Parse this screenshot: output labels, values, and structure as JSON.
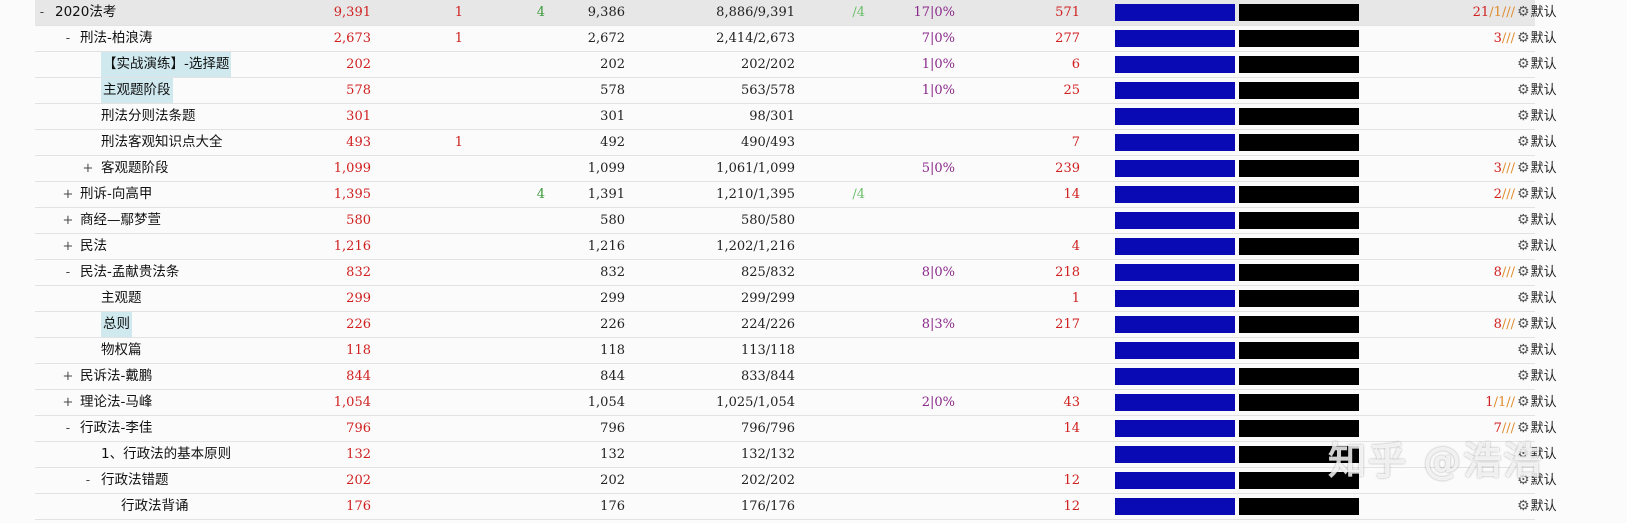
{
  "rows": [
    {
      "toggle": "-",
      "name": "2020法考",
      "c1": "9,391",
      "c2": "1",
      "c3": "4",
      "c4": "9,386",
      "c5a": "8,886",
      "c5b": "9,391",
      "c6": "/4",
      "c7": "17|0%",
      "c8": "571",
      "c9a": "21",
      "c9b": "/1/",
      "c9c": "//",
      "def": "默认"
    },
    {
      "toggle": "-",
      "name": "刑法-柏浪涛",
      "c1": "2,673",
      "c2": "1",
      "c3": "",
      "c4": "2,672",
      "c5a": "2,414",
      "c5b": "2,673",
      "c6": "",
      "c7": "7|0%",
      "c8": "277",
      "c9a": "3",
      "c9b": "",
      "c9c": "///",
      "def": "默认"
    },
    {
      "toggle": "",
      "name": "【实战演练】-选择题",
      "c1": "202",
      "c2": "",
      "c3": "",
      "c4": "202",
      "c5a": "202",
      "c5b": "202",
      "c6": "",
      "c7": "1|0%",
      "c8": "6",
      "c9a": "",
      "c9b": "",
      "c9c": "",
      "def": "默认"
    },
    {
      "toggle": "",
      "name": "主观题阶段",
      "c1": "578",
      "c2": "",
      "c3": "",
      "c4": "578",
      "c5a": "563",
      "c5b": "578",
      "c6": "",
      "c7": "1|0%",
      "c8": "25",
      "c9a": "",
      "c9b": "",
      "c9c": "",
      "def": "默认"
    },
    {
      "toggle": "",
      "name": "刑法分则法条题",
      "c1": "301",
      "c2": "",
      "c3": "",
      "c4": "301",
      "c5a": "98",
      "c5b": "301",
      "c6": "",
      "c7": "",
      "c8": "",
      "c9a": "",
      "c9b": "",
      "c9c": "",
      "def": "默认"
    },
    {
      "toggle": "",
      "name": "刑法客观知识点大全",
      "c1": "493",
      "c2": "1",
      "c3": "",
      "c4": "492",
      "c5a": "490",
      "c5b": "493",
      "c6": "",
      "c7": "",
      "c8": "7",
      "c9a": "",
      "c9b": "",
      "c9c": "",
      "def": "默认"
    },
    {
      "toggle": "+",
      "name": "客观题阶段",
      "c1": "1,099",
      "c2": "",
      "c3": "",
      "c4": "1,099",
      "c5a": "1,061",
      "c5b": "1,099",
      "c6": "",
      "c7": "5|0%",
      "c8": "239",
      "c9a": "3",
      "c9b": "",
      "c9c": "///",
      "def": "默认"
    },
    {
      "toggle": "+",
      "name": "刑诉-向高甲",
      "c1": "1,395",
      "c2": "",
      "c3": "4",
      "c4": "1,391",
      "c5a": "1,210",
      "c5b": "1,395",
      "c6": "/4",
      "c7": "",
      "c8": "14",
      "c9a": "2",
      "c9b": "",
      "c9c": "///",
      "def": "默认"
    },
    {
      "toggle": "+",
      "name": "商经—鄢梦萱",
      "c1": "580",
      "c2": "",
      "c3": "",
      "c4": "580",
      "c5a": "580",
      "c5b": "580",
      "c6": "",
      "c7": "",
      "c8": "",
      "c9a": "",
      "c9b": "",
      "c9c": "",
      "def": "默认"
    },
    {
      "toggle": "+",
      "name": "民法",
      "c1": "1,216",
      "c2": "",
      "c3": "",
      "c4": "1,216",
      "c5a": "1,202",
      "c5b": "1,216",
      "c6": "",
      "c7": "",
      "c8": "4",
      "c9a": "",
      "c9b": "",
      "c9c": "",
      "def": "默认"
    },
    {
      "toggle": "-",
      "name": "民法-孟献贵法条",
      "c1": "832",
      "c2": "",
      "c3": "",
      "c4": "832",
      "c5a": "825",
      "c5b": "832",
      "c6": "",
      "c7": "8|0%",
      "c8": "218",
      "c9a": "8",
      "c9b": "",
      "c9c": "///",
      "def": "默认"
    },
    {
      "toggle": "",
      "name": "主观题",
      "c1": "299",
      "c2": "",
      "c3": "",
      "c4": "299",
      "c5a": "299",
      "c5b": "299",
      "c6": "",
      "c7": "",
      "c8": "1",
      "c9a": "",
      "c9b": "",
      "c9c": "",
      "def": "默认"
    },
    {
      "toggle": "",
      "name": "总则",
      "c1": "226",
      "c2": "",
      "c3": "",
      "c4": "226",
      "c5a": "224",
      "c5b": "226",
      "c6": "",
      "c7": "8|3%",
      "c8": "217",
      "c9a": "8",
      "c9b": "",
      "c9c": "///",
      "def": "默认"
    },
    {
      "toggle": "",
      "name": "物权篇",
      "c1": "118",
      "c2": "",
      "c3": "",
      "c4": "118",
      "c5a": "113",
      "c5b": "118",
      "c6": "",
      "c7": "",
      "c8": "",
      "c9a": "",
      "c9b": "",
      "c9c": "",
      "def": "默认"
    },
    {
      "toggle": "+",
      "name": "民诉法-戴鹏",
      "c1": "844",
      "c2": "",
      "c3": "",
      "c4": "844",
      "c5a": "833",
      "c5b": "844",
      "c6": "",
      "c7": "",
      "c8": "",
      "c9a": "",
      "c9b": "",
      "c9c": "",
      "def": "默认"
    },
    {
      "toggle": "+",
      "name": "理论法-马峰",
      "c1": "1,054",
      "c2": "",
      "c3": "",
      "c4": "1,054",
      "c5a": "1,025",
      "c5b": "1,054",
      "c6": "",
      "c7": "2|0%",
      "c8": "43",
      "c9a": "1",
      "c9b": "/1/",
      "c9c": "/",
      "def": "默认"
    },
    {
      "toggle": "-",
      "name": "行政法-李佳",
      "c1": "796",
      "c2": "",
      "c3": "",
      "c4": "796",
      "c5a": "796",
      "c5b": "796",
      "c6": "",
      "c7": "",
      "c8": "14",
      "c9a": "7",
      "c9b": "",
      "c9c": "///",
      "def": "默认"
    },
    {
      "toggle": "",
      "name": "1、行政法的基本原则",
      "c1": "132",
      "c2": "",
      "c3": "",
      "c4": "132",
      "c5a": "132",
      "c5b": "132",
      "c6": "",
      "c7": "",
      "c8": "",
      "c9a": "",
      "c9b": "",
      "c9c": "",
      "def": "默认"
    },
    {
      "toggle": "-",
      "name": "行政法错题",
      "c1": "202",
      "c2": "",
      "c3": "",
      "c4": "202",
      "c5a": "202",
      "c5b": "202",
      "c6": "",
      "c7": "",
      "c8": "12",
      "c9a": "",
      "c9b": "",
      "c9c": "",
      "def": "默认"
    },
    {
      "toggle": "",
      "name": "行政法背诵",
      "c1": "176",
      "c2": "",
      "c3": "",
      "c4": "176",
      "c5a": "176",
      "c5b": "176",
      "c6": "",
      "c7": "",
      "c8": "12",
      "c9a": "",
      "c9b": "",
      "c9c": "",
      "def": "默认"
    }
  ],
  "watermark": "知乎 @浩浩",
  "icons": {
    "options": "gear-icon"
  },
  "colors": {
    "bar_blue": "#0a0ab4",
    "bar_black": "#000000",
    "count_red": "#d02020"
  }
}
